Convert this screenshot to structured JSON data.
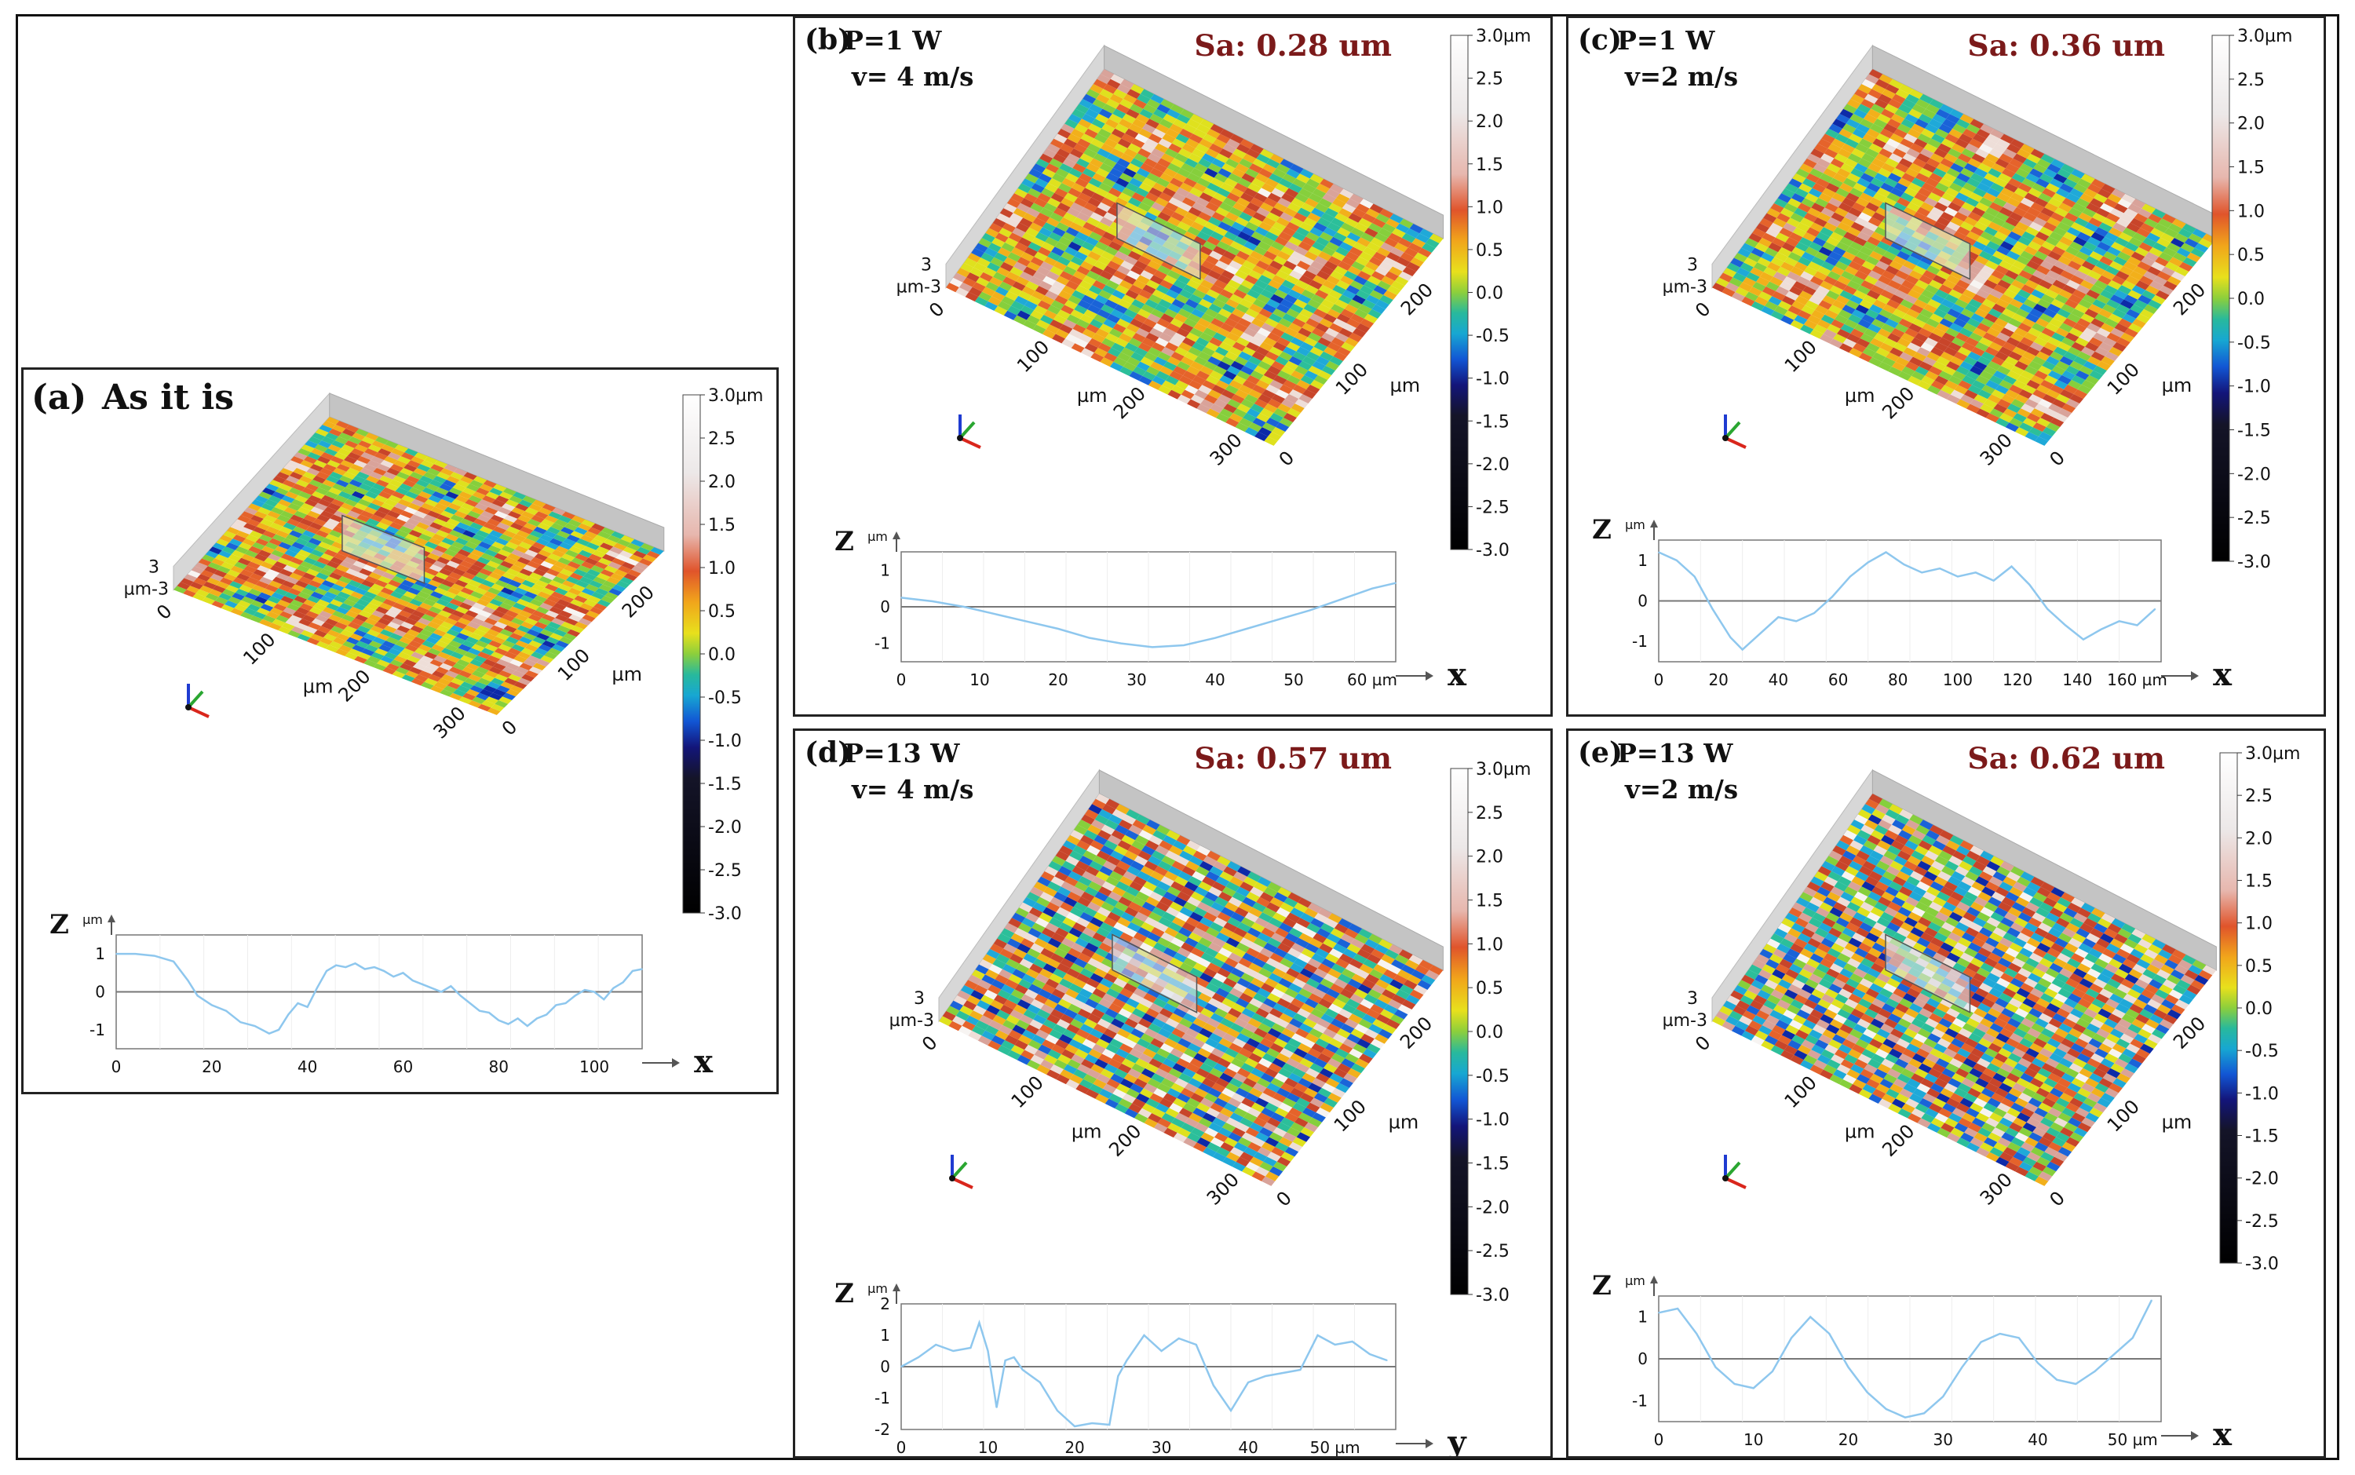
{
  "colorbar": {
    "unit": "µm",
    "ticks": [
      "3.0µm",
      "2.5",
      "2.0",
      "1.5",
      "1.0",
      "0.5",
      "0.0",
      "-0.5",
      "-1.0",
      "-1.5",
      "-2.0",
      "-2.5",
      "-3.0"
    ]
  },
  "panels": [
    {
      "id": "a",
      "label": "(a)",
      "title_line1": "As it is",
      "title_line2": "",
      "sa": "",
      "surface": {
        "z_top": "3",
        "z_bottom": "µm-3",
        "x_ticks": [
          "0",
          "100",
          "200",
          "300"
        ],
        "x_unit": "µm",
        "y_ticks": [
          "0",
          "100",
          "200"
        ],
        "y_unit": "µm"
      },
      "profile": {
        "z_label": "Z",
        "z_unit": "µm",
        "y_ticks": [
          "1",
          "0",
          "-1"
        ],
        "x_ticks": [
          "0",
          "20",
          "40",
          "60",
          "80",
          "100"
        ],
        "x_unit": "",
        "axis_letter": "x",
        "chart_data": {
          "type": "line",
          "xlabel": "x (µm)",
          "ylabel": "Z (µm)",
          "xlim": [
            0,
            110
          ],
          "ylim": [
            -1.5,
            1.5
          ],
          "x": [
            0,
            4,
            8,
            12,
            15,
            17,
            20,
            23,
            26,
            29,
            32,
            34,
            36,
            38,
            40,
            42,
            44,
            46,
            48,
            50,
            52,
            54,
            56,
            58,
            60,
            62,
            64,
            66,
            68,
            70,
            72,
            74,
            76,
            78,
            80,
            82,
            84,
            86,
            88,
            90,
            92,
            94,
            96,
            98,
            100,
            102,
            104,
            106,
            108,
            110
          ],
          "y": [
            1.0,
            1.0,
            0.95,
            0.8,
            0.3,
            -0.1,
            -0.35,
            -0.5,
            -0.8,
            -0.9,
            -1.1,
            -1.0,
            -0.6,
            -0.3,
            -0.4,
            0.1,
            0.55,
            0.7,
            0.65,
            0.75,
            0.6,
            0.65,
            0.55,
            0.4,
            0.5,
            0.3,
            0.2,
            0.1,
            0.0,
            0.15,
            -0.1,
            -0.3,
            -0.5,
            -0.55,
            -0.75,
            -0.85,
            -0.7,
            -0.9,
            -0.7,
            -0.6,
            -0.35,
            -0.3,
            -0.1,
            0.05,
            0.0,
            -0.2,
            0.1,
            0.25,
            0.55,
            0.6
          ]
        }
      }
    },
    {
      "id": "b",
      "label": "(b)",
      "title_line1": "P=1 W",
      "title_line2": "v= 4 m/s",
      "sa": "Sa: 0.28 um",
      "surface": {
        "z_top": "3",
        "z_bottom": "µm-3",
        "x_ticks": [
          "0",
          "100",
          "200",
          "300"
        ],
        "x_unit": "µm",
        "y_ticks": [
          "0",
          "100",
          "200"
        ],
        "y_unit": "µm"
      },
      "profile": {
        "z_label": "Z",
        "z_unit": "µm",
        "y_ticks": [
          "1",
          "0",
          "-1"
        ],
        "x_ticks": [
          "0",
          "10",
          "20",
          "30",
          "40",
          "50",
          "60 µm"
        ],
        "x_unit": "",
        "axis_letter": "x",
        "chart_data": {
          "type": "line",
          "xlabel": "x (µm)",
          "ylabel": "Z (µm)",
          "xlim": [
            0,
            63
          ],
          "ylim": [
            -1.5,
            1.5
          ],
          "x": [
            0,
            4,
            8,
            12,
            16,
            20,
            24,
            28,
            32,
            36,
            40,
            44,
            48,
            52,
            56,
            60,
            63
          ],
          "y": [
            0.25,
            0.15,
            0.0,
            -0.2,
            -0.4,
            -0.6,
            -0.85,
            -1.0,
            -1.1,
            -1.05,
            -0.85,
            -0.6,
            -0.35,
            -0.1,
            0.2,
            0.5,
            0.65
          ]
        }
      }
    },
    {
      "id": "c",
      "label": "(c)",
      "title_line1": "P=1 W",
      "title_line2": "v=2 m/s",
      "sa": "Sa: 0.36 um",
      "surface": {
        "z_top": "3",
        "z_bottom": "µm-3",
        "x_ticks": [
          "0",
          "100",
          "200",
          "300"
        ],
        "x_unit": "µm",
        "y_ticks": [
          "0",
          "100",
          "200"
        ],
        "y_unit": "µm"
      },
      "profile": {
        "z_label": "Z",
        "z_unit": "µm",
        "y_ticks": [
          "1",
          "0",
          "-1"
        ],
        "x_ticks": [
          "0",
          "20",
          "40",
          "60",
          "80",
          "100",
          "120",
          "140",
          "160 µm"
        ],
        "x_unit": "",
        "axis_letter": "x",
        "chart_data": {
          "type": "line",
          "xlabel": "x (µm)",
          "ylabel": "Z (µm)",
          "xlim": [
            0,
            168
          ],
          "ylim": [
            -1.5,
            1.5
          ],
          "x": [
            0,
            6,
            12,
            18,
            24,
            28,
            34,
            40,
            46,
            52,
            58,
            64,
            70,
            76,
            82,
            88,
            94,
            100,
            106,
            112,
            118,
            124,
            130,
            136,
            142,
            148,
            154,
            160,
            166
          ],
          "y": [
            1.2,
            1.0,
            0.6,
            -0.2,
            -0.9,
            -1.2,
            -0.8,
            -0.4,
            -0.5,
            -0.3,
            0.1,
            0.6,
            0.95,
            1.2,
            0.9,
            0.7,
            0.8,
            0.6,
            0.7,
            0.5,
            0.85,
            0.4,
            -0.2,
            -0.6,
            -0.95,
            -0.7,
            -0.5,
            -0.6,
            -0.2
          ]
        }
      }
    },
    {
      "id": "d",
      "label": "(d)",
      "title_line1": "P=13 W",
      "title_line2": "v= 4 m/s",
      "sa": "Sa: 0.57 um",
      "surface": {
        "z_top": "3",
        "z_bottom": "µm-3",
        "x_ticks": [
          "0",
          "100",
          "200",
          "300"
        ],
        "x_unit": "µm",
        "y_ticks": [
          "0",
          "100",
          "200"
        ],
        "y_unit": "µm"
      },
      "profile": {
        "z_label": "Z",
        "z_unit": "µm",
        "y_ticks": [
          "2",
          "1",
          "0",
          "-1",
          "-2"
        ],
        "x_ticks": [
          "0",
          "10",
          "20",
          "30",
          "40",
          "50 µm"
        ],
        "x_unit": "",
        "axis_letter": "y",
        "chart_data": {
          "type": "line",
          "xlabel": "y (µm)",
          "ylabel": "Z (µm)",
          "xlim": [
            0,
            57
          ],
          "ylim": [
            -2,
            2
          ],
          "x": [
            0,
            2,
            4,
            6,
            8,
            9,
            10,
            11,
            12,
            13,
            14,
            16,
            18,
            20,
            22,
            24,
            25,
            26,
            28,
            30,
            32,
            34,
            36,
            38,
            40,
            42,
            44,
            46,
            48,
            50,
            52,
            54,
            56
          ],
          "y": [
            0.0,
            0.3,
            0.7,
            0.5,
            0.6,
            1.4,
            0.5,
            -1.3,
            0.2,
            0.3,
            -0.1,
            -0.5,
            -1.4,
            -1.9,
            -1.8,
            -1.85,
            -0.3,
            0.2,
            1.0,
            0.5,
            0.9,
            0.7,
            -0.6,
            -1.4,
            -0.5,
            -0.3,
            -0.2,
            -0.1,
            1.0,
            0.7,
            0.8,
            0.4,
            0.2
          ]
        }
      }
    },
    {
      "id": "e",
      "label": "(e)",
      "title_line1": "P=13 W",
      "title_line2": "v=2 m/s",
      "sa": "Sa: 0.62 um",
      "surface": {
        "z_top": "3",
        "z_bottom": "µm-3",
        "x_ticks": [
          "0",
          "100",
          "200",
          "300"
        ],
        "x_unit": "µm",
        "y_ticks": [
          "0",
          "100",
          "200"
        ],
        "y_unit": "µm"
      },
      "profile": {
        "z_label": "Z",
        "z_unit": "µm",
        "y_ticks": [
          "1",
          "0",
          "-1"
        ],
        "x_ticks": [
          "0",
          "10",
          "20",
          "30",
          "40",
          "50 µm"
        ],
        "x_unit": "",
        "axis_letter": "x",
        "chart_data": {
          "type": "line",
          "xlabel": "x (µm)",
          "ylabel": "Z (µm)",
          "xlim": [
            0,
            53
          ],
          "ylim": [
            -1.5,
            1.5
          ],
          "x": [
            0,
            2,
            4,
            6,
            8,
            10,
            12,
            14,
            16,
            18,
            20,
            22,
            24,
            26,
            28,
            30,
            32,
            34,
            36,
            38,
            40,
            42,
            44,
            46,
            48,
            50,
            52
          ],
          "y": [
            1.1,
            1.2,
            0.6,
            -0.2,
            -0.6,
            -0.7,
            -0.3,
            0.5,
            1.0,
            0.6,
            -0.2,
            -0.8,
            -1.2,
            -1.4,
            -1.3,
            -0.9,
            -0.2,
            0.4,
            0.6,
            0.5,
            -0.1,
            -0.5,
            -0.6,
            -0.3,
            0.1,
            0.5,
            1.4
          ]
        }
      }
    }
  ]
}
